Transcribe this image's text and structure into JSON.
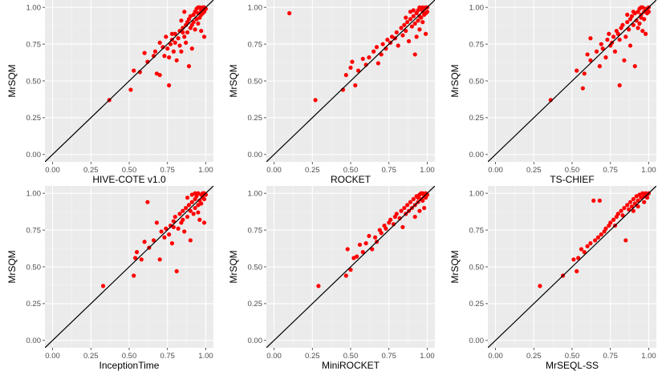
{
  "colors": {
    "panel_background": "#ebebeb",
    "grid_major": "#ffffff",
    "grid_minor": "#f5f5f5",
    "point": "#ff0000",
    "diagonal": "#000000",
    "tick_text": "#4d4d4d"
  },
  "chart_data": [
    {
      "type": "scatter",
      "title": "",
      "xlabel": "HIVE-COTE v1.0",
      "ylabel": "MrSQM",
      "xlim": [
        0,
        1
      ],
      "ylim": [
        0,
        1
      ],
      "ticks": [
        0,
        0.25,
        0.5,
        0.75,
        1
      ],
      "tick_labels": [
        "0.00",
        "0.25",
        "0.50",
        "0.75",
        "1.00"
      ],
      "reference_line": "y = x",
      "grid": true,
      "points": [
        [
          0.37,
          0.37
        ],
        [
          0.51,
          0.44
        ],
        [
          0.53,
          0.57
        ],
        [
          0.57,
          0.56
        ],
        [
          0.6,
          0.69
        ],
        [
          0.62,
          0.63
        ],
        [
          0.66,
          0.67
        ],
        [
          0.67,
          0.7
        ],
        [
          0.68,
          0.55
        ],
        [
          0.7,
          0.54
        ],
        [
          0.7,
          0.76
        ],
        [
          0.72,
          0.73
        ],
        [
          0.73,
          0.67
        ],
        [
          0.74,
          0.8
        ],
        [
          0.75,
          0.72
        ],
        [
          0.76,
          0.47
        ],
        [
          0.76,
          0.66
        ],
        [
          0.77,
          0.75
        ],
        [
          0.78,
          0.78
        ],
        [
          0.78,
          0.82
        ],
        [
          0.79,
          0.7
        ],
        [
          0.8,
          0.76
        ],
        [
          0.8,
          0.82
        ],
        [
          0.81,
          0.64
        ],
        [
          0.82,
          0.79
        ],
        [
          0.83,
          0.84
        ],
        [
          0.83,
          0.74
        ],
        [
          0.84,
          0.7
        ],
        [
          0.85,
          0.86
        ],
        [
          0.85,
          0.83
        ],
        [
          0.86,
          0.8
        ],
        [
          0.87,
          0.76
        ],
        [
          0.87,
          0.88
        ],
        [
          0.88,
          0.9
        ],
        [
          0.88,
          0.83
        ],
        [
          0.89,
          0.6
        ],
        [
          0.89,
          0.92
        ],
        [
          0.9,
          0.86
        ],
        [
          0.9,
          0.94
        ],
        [
          0.91,
          0.88
        ],
        [
          0.91,
          0.72
        ],
        [
          0.92,
          0.95
        ],
        [
          0.92,
          0.9
        ],
        [
          0.93,
          0.85
        ],
        [
          0.93,
          0.97
        ],
        [
          0.94,
          0.92
        ],
        [
          0.94,
          0.99
        ],
        [
          0.95,
          0.89
        ],
        [
          0.95,
          0.96
        ],
        [
          0.96,
          0.93
        ],
        [
          0.96,
          1.0
        ],
        [
          0.97,
          0.98
        ],
        [
          0.97,
          0.84
        ],
        [
          0.98,
          0.96
        ],
        [
          0.98,
          0.99
        ],
        [
          0.99,
          0.97
        ],
        [
          0.99,
          0.8
        ],
        [
          0.86,
          0.97
        ],
        [
          0.84,
          0.91
        ],
        [
          0.95,
          1.0
        ],
        [
          1.0,
          0.99
        ],
        [
          0.98,
          1.0
        ],
        [
          0.99,
          1.0
        ],
        [
          0.97,
          0.95
        ]
      ]
    },
    {
      "type": "scatter",
      "title": "",
      "xlabel": "ROCKET",
      "ylabel": "MrSQM",
      "xlim": [
        0,
        1
      ],
      "ylim": [
        0,
        1
      ],
      "ticks": [
        0,
        0.25,
        0.5,
        0.75,
        1
      ],
      "tick_labels": [
        "0.00",
        "0.25",
        "0.50",
        "0.75",
        "1.00"
      ],
      "reference_line": "y = x",
      "grid": true,
      "points": [
        [
          0.1,
          0.96
        ],
        [
          0.27,
          0.37
        ],
        [
          0.45,
          0.44
        ],
        [
          0.47,
          0.54
        ],
        [
          0.5,
          0.59
        ],
        [
          0.51,
          0.63
        ],
        [
          0.53,
          0.47
        ],
        [
          0.55,
          0.57
        ],
        [
          0.58,
          0.65
        ],
        [
          0.6,
          0.61
        ],
        [
          0.62,
          0.66
        ],
        [
          0.65,
          0.7
        ],
        [
          0.67,
          0.73
        ],
        [
          0.68,
          0.62
        ],
        [
          0.7,
          0.68
        ],
        [
          0.71,
          0.75
        ],
        [
          0.73,
          0.72
        ],
        [
          0.74,
          0.78
        ],
        [
          0.76,
          0.76
        ],
        [
          0.77,
          0.8
        ],
        [
          0.79,
          0.79
        ],
        [
          0.8,
          0.83
        ],
        [
          0.81,
          0.74
        ],
        [
          0.83,
          0.86
        ],
        [
          0.84,
          0.81
        ],
        [
          0.85,
          0.88
        ],
        [
          0.86,
          0.84
        ],
        [
          0.87,
          0.9
        ],
        [
          0.88,
          0.77
        ],
        [
          0.89,
          0.92
        ],
        [
          0.9,
          0.87
        ],
        [
          0.91,
          0.94
        ],
        [
          0.92,
          0.68
        ],
        [
          0.92,
          0.89
        ],
        [
          0.93,
          0.96
        ],
        [
          0.94,
          0.91
        ],
        [
          0.94,
          0.98
        ],
        [
          0.95,
          0.85
        ],
        [
          0.95,
          0.94
        ],
        [
          0.96,
          0.99
        ],
        [
          0.96,
          0.93
        ],
        [
          0.97,
          0.97
        ],
        [
          0.97,
          1.0
        ],
        [
          0.98,
          0.95
        ],
        [
          0.98,
          0.99
        ],
        [
          0.99,
          0.82
        ],
        [
          0.99,
          0.96
        ],
        [
          1.0,
          1.0
        ],
        [
          0.89,
          0.97
        ],
        [
          0.93,
          0.8
        ],
        [
          0.86,
          0.93
        ],
        [
          0.97,
          0.9
        ],
        [
          1.0,
          0.97
        ],
        [
          0.99,
          1.0
        ],
        [
          0.95,
          1.0
        ],
        [
          0.91,
          0.98
        ]
      ]
    },
    {
      "type": "scatter",
      "title": "",
      "xlabel": "TS-CHIEF",
      "ylabel": "MrSQM",
      "xlim": [
        0,
        1
      ],
      "ylim": [
        0,
        1
      ],
      "ticks": [
        0,
        0.25,
        0.5,
        0.75,
        1
      ],
      "tick_labels": [
        "0.00",
        "0.25",
        "0.50",
        "0.75",
        "1.00"
      ],
      "reference_line": "y = x",
      "grid": true,
      "points": [
        [
          0.36,
          0.37
        ],
        [
          0.53,
          0.57
        ],
        [
          0.57,
          0.45
        ],
        [
          0.58,
          0.55
        ],
        [
          0.6,
          0.68
        ],
        [
          0.62,
          0.64
        ],
        [
          0.62,
          0.79
        ],
        [
          0.66,
          0.7
        ],
        [
          0.68,
          0.6
        ],
        [
          0.69,
          0.75
        ],
        [
          0.7,
          0.72
        ],
        [
          0.72,
          0.66
        ],
        [
          0.73,
          0.78
        ],
        [
          0.74,
          0.82
        ],
        [
          0.75,
          0.74
        ],
        [
          0.76,
          0.76
        ],
        [
          0.77,
          0.8
        ],
        [
          0.78,
          0.7
        ],
        [
          0.79,
          0.84
        ],
        [
          0.8,
          0.82
        ],
        [
          0.81,
          0.47
        ],
        [
          0.81,
          0.78
        ],
        [
          0.82,
          0.86
        ],
        [
          0.83,
          0.88
        ],
        [
          0.84,
          0.64
        ],
        [
          0.85,
          0.8
        ],
        [
          0.86,
          0.9
        ],
        [
          0.87,
          0.85
        ],
        [
          0.88,
          0.92
        ],
        [
          0.88,
          0.74
        ],
        [
          0.89,
          0.94
        ],
        [
          0.9,
          0.88
        ],
        [
          0.91,
          0.6
        ],
        [
          0.91,
          0.96
        ],
        [
          0.92,
          0.91
        ],
        [
          0.93,
          0.97
        ],
        [
          0.93,
          0.86
        ],
        [
          0.94,
          0.99
        ],
        [
          0.95,
          0.93
        ],
        [
          0.95,
          0.95
        ],
        [
          0.96,
          1.0
        ],
        [
          0.96,
          0.84
        ],
        [
          0.97,
          0.97
        ],
        [
          0.98,
          0.99
        ],
        [
          0.98,
          0.82
        ],
        [
          0.99,
          0.96
        ],
        [
          1.0,
          1.0
        ],
        [
          0.99,
          0.98
        ],
        [
          0.97,
          0.92
        ],
        [
          0.9,
          0.97
        ],
        [
          0.86,
          0.95
        ],
        [
          0.94,
          0.89
        ],
        [
          1.0,
          0.97
        ],
        [
          0.95,
          1.0
        ]
      ]
    },
    {
      "type": "scatter",
      "title": "",
      "xlabel": "InceptionTime",
      "ylabel": "MrSQM",
      "xlim": [
        0,
        1
      ],
      "ylim": [
        0,
        1
      ],
      "ticks": [
        0,
        0.25,
        0.5,
        0.75,
        1
      ],
      "tick_labels": [
        "0.00",
        "0.25",
        "0.50",
        "0.75",
        "1.00"
      ],
      "reference_line": "y = x",
      "grid": true,
      "points": [
        [
          0.33,
          0.37
        ],
        [
          0.53,
          0.44
        ],
        [
          0.54,
          0.56
        ],
        [
          0.55,
          0.6
        ],
        [
          0.58,
          0.55
        ],
        [
          0.6,
          0.67
        ],
        [
          0.62,
          0.94
        ],
        [
          0.63,
          0.63
        ],
        [
          0.66,
          0.68
        ],
        [
          0.68,
          0.8
        ],
        [
          0.7,
          0.55
        ],
        [
          0.71,
          0.74
        ],
        [
          0.73,
          0.7
        ],
        [
          0.74,
          0.76
        ],
        [
          0.76,
          0.72
        ],
        [
          0.77,
          0.78
        ],
        [
          0.78,
          0.66
        ],
        [
          0.79,
          0.81
        ],
        [
          0.8,
          0.84
        ],
        [
          0.81,
          0.47
        ],
        [
          0.82,
          0.76
        ],
        [
          0.83,
          0.86
        ],
        [
          0.84,
          0.8
        ],
        [
          0.85,
          0.88
        ],
        [
          0.86,
          0.74
        ],
        [
          0.87,
          0.9
        ],
        [
          0.88,
          0.84
        ],
        [
          0.89,
          0.92
        ],
        [
          0.9,
          0.68
        ],
        [
          0.9,
          0.88
        ],
        [
          0.91,
          0.94
        ],
        [
          0.92,
          0.86
        ],
        [
          0.93,
          0.96
        ],
        [
          0.93,
          0.9
        ],
        [
          0.94,
          0.98
        ],
        [
          0.95,
          0.92
        ],
        [
          0.95,
          1.0
        ],
        [
          0.96,
          0.95
        ],
        [
          0.96,
          0.82
        ],
        [
          0.97,
          0.99
        ],
        [
          0.97,
          0.93
        ],
        [
          0.98,
          0.97
        ],
        [
          0.98,
          1.0
        ],
        [
          0.99,
          0.96
        ],
        [
          0.99,
          0.8
        ],
        [
          1.0,
          0.99
        ],
        [
          0.91,
          0.99
        ],
        [
          0.88,
          0.97
        ],
        [
          0.95,
          0.87
        ],
        [
          0.93,
          1.0
        ],
        [
          0.99,
          1.0
        ],
        [
          0.85,
          0.82
        ],
        [
          0.79,
          0.77
        ]
      ]
    },
    {
      "type": "scatter",
      "title": "",
      "xlabel": "MiniROCKET",
      "ylabel": "MrSQM",
      "xlim": [
        0,
        1
      ],
      "ylim": [
        0,
        1
      ],
      "ticks": [
        0,
        0.25,
        0.5,
        0.75,
        1
      ],
      "tick_labels": [
        "0.00",
        "0.25",
        "0.50",
        "0.75",
        "1.00"
      ],
      "reference_line": "y = x",
      "grid": true,
      "points": [
        [
          0.29,
          0.37
        ],
        [
          0.47,
          0.44
        ],
        [
          0.48,
          0.62
        ],
        [
          0.5,
          0.48
        ],
        [
          0.52,
          0.56
        ],
        [
          0.54,
          0.57
        ],
        [
          0.56,
          0.65
        ],
        [
          0.58,
          0.6
        ],
        [
          0.6,
          0.66
        ],
        [
          0.62,
          0.71
        ],
        [
          0.64,
          0.62
        ],
        [
          0.66,
          0.7
        ],
        [
          0.67,
          0.67
        ],
        [
          0.69,
          0.75
        ],
        [
          0.7,
          0.73
        ],
        [
          0.72,
          0.78
        ],
        [
          0.73,
          0.76
        ],
        [
          0.75,
          0.8
        ],
        [
          0.76,
          0.82
        ],
        [
          0.78,
          0.79
        ],
        [
          0.79,
          0.84
        ],
        [
          0.8,
          0.86
        ],
        [
          0.82,
          0.83
        ],
        [
          0.83,
          0.88
        ],
        [
          0.84,
          0.77
        ],
        [
          0.85,
          0.9
        ],
        [
          0.86,
          0.86
        ],
        [
          0.87,
          0.92
        ],
        [
          0.88,
          0.88
        ],
        [
          0.89,
          0.94
        ],
        [
          0.9,
          0.9
        ],
        [
          0.91,
          0.96
        ],
        [
          0.92,
          0.84
        ],
        [
          0.92,
          0.92
        ],
        [
          0.93,
          0.98
        ],
        [
          0.94,
          0.94
        ],
        [
          0.95,
          0.99
        ],
        [
          0.95,
          0.88
        ],
        [
          0.96,
          0.96
        ],
        [
          0.97,
          1.0
        ],
        [
          0.97,
          0.95
        ],
        [
          0.98,
          0.98
        ],
        [
          0.98,
          0.9
        ],
        [
          0.99,
          1.0
        ],
        [
          0.99,
          0.97
        ],
        [
          1.0,
          0.99
        ],
        [
          0.96,
          1.0
        ],
        [
          0.94,
          0.97
        ]
      ]
    },
    {
      "type": "scatter",
      "title": "",
      "xlabel": "MrSEQL-SS",
      "ylabel": "MrSQM",
      "xlim": [
        0,
        1
      ],
      "ylim": [
        0,
        1
      ],
      "ticks": [
        0,
        0.25,
        0.5,
        0.75,
        1
      ],
      "tick_labels": [
        "0.00",
        "0.25",
        "0.50",
        "0.75",
        "1.00"
      ],
      "reference_line": "y = x",
      "grid": true,
      "points": [
        [
          0.29,
          0.37
        ],
        [
          0.44,
          0.44
        ],
        [
          0.51,
          0.55
        ],
        [
          0.53,
          0.47
        ],
        [
          0.54,
          0.56
        ],
        [
          0.56,
          0.62
        ],
        [
          0.58,
          0.6
        ],
        [
          0.6,
          0.64
        ],
        [
          0.62,
          0.66
        ],
        [
          0.64,
          0.95
        ],
        [
          0.65,
          0.68
        ],
        [
          0.67,
          0.7
        ],
        [
          0.68,
          0.95
        ],
        [
          0.69,
          0.72
        ],
        [
          0.71,
          0.74
        ],
        [
          0.72,
          0.76
        ],
        [
          0.74,
          0.78
        ],
        [
          0.75,
          0.8
        ],
        [
          0.77,
          0.82
        ],
        [
          0.78,
          0.78
        ],
        [
          0.79,
          0.84
        ],
        [
          0.8,
          0.86
        ],
        [
          0.82,
          0.88
        ],
        [
          0.83,
          0.85
        ],
        [
          0.84,
          0.9
        ],
        [
          0.85,
          0.68
        ],
        [
          0.86,
          0.92
        ],
        [
          0.87,
          0.89
        ],
        [
          0.88,
          0.94
        ],
        [
          0.89,
          0.91
        ],
        [
          0.9,
          0.96
        ],
        [
          0.91,
          0.93
        ],
        [
          0.92,
          0.98
        ],
        [
          0.93,
          0.95
        ],
        [
          0.94,
          0.99
        ],
        [
          0.95,
          0.97
        ],
        [
          0.96,
          1.0
        ],
        [
          0.97,
          0.98
        ],
        [
          0.98,
          1.0
        ],
        [
          0.99,
          0.99
        ],
        [
          1.0,
          1.0
        ],
        [
          0.97,
          0.94
        ],
        [
          0.93,
          0.91
        ],
        [
          0.9,
          0.88
        ],
        [
          0.99,
          0.97
        ]
      ]
    }
  ]
}
